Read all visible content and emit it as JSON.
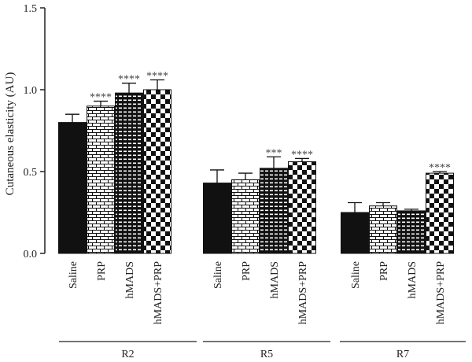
{
  "chart_data": {
    "type": "bar",
    "title": "",
    "xlabel": "",
    "ylabel": "Cutaneous elasticity (AU)",
    "ylim": [
      0,
      1.5
    ],
    "yticks": [
      "0.0",
      "0.5",
      "1.0",
      "1.5"
    ],
    "grid": false,
    "legend": "none",
    "categories": [
      "Saline",
      "PRP",
      "hMADS",
      "hMADS+PRP"
    ],
    "groups": [
      "R2",
      "R5",
      "R7"
    ],
    "series": [
      {
        "group": "R2",
        "values": [
          0.8,
          0.9,
          0.98,
          1.0
        ],
        "errors": [
          0.05,
          0.03,
          0.06,
          0.06
        ],
        "significance": [
          "",
          "****",
          "****",
          "****"
        ]
      },
      {
        "group": "R5",
        "values": [
          0.43,
          0.45,
          0.52,
          0.56
        ],
        "errors": [
          0.08,
          0.04,
          0.07,
          0.02
        ],
        "significance": [
          "",
          "",
          "***",
          "****"
        ]
      },
      {
        "group": "R7",
        "values": [
          0.25,
          0.29,
          0.26,
          0.49
        ],
        "errors": [
          0.06,
          0.02,
          0.01,
          0.01
        ],
        "significance": [
          "",
          "",
          "",
          "****"
        ]
      }
    ],
    "patterns": [
      "solid-black",
      "brick",
      "dense-grid",
      "checkerboard"
    ]
  }
}
